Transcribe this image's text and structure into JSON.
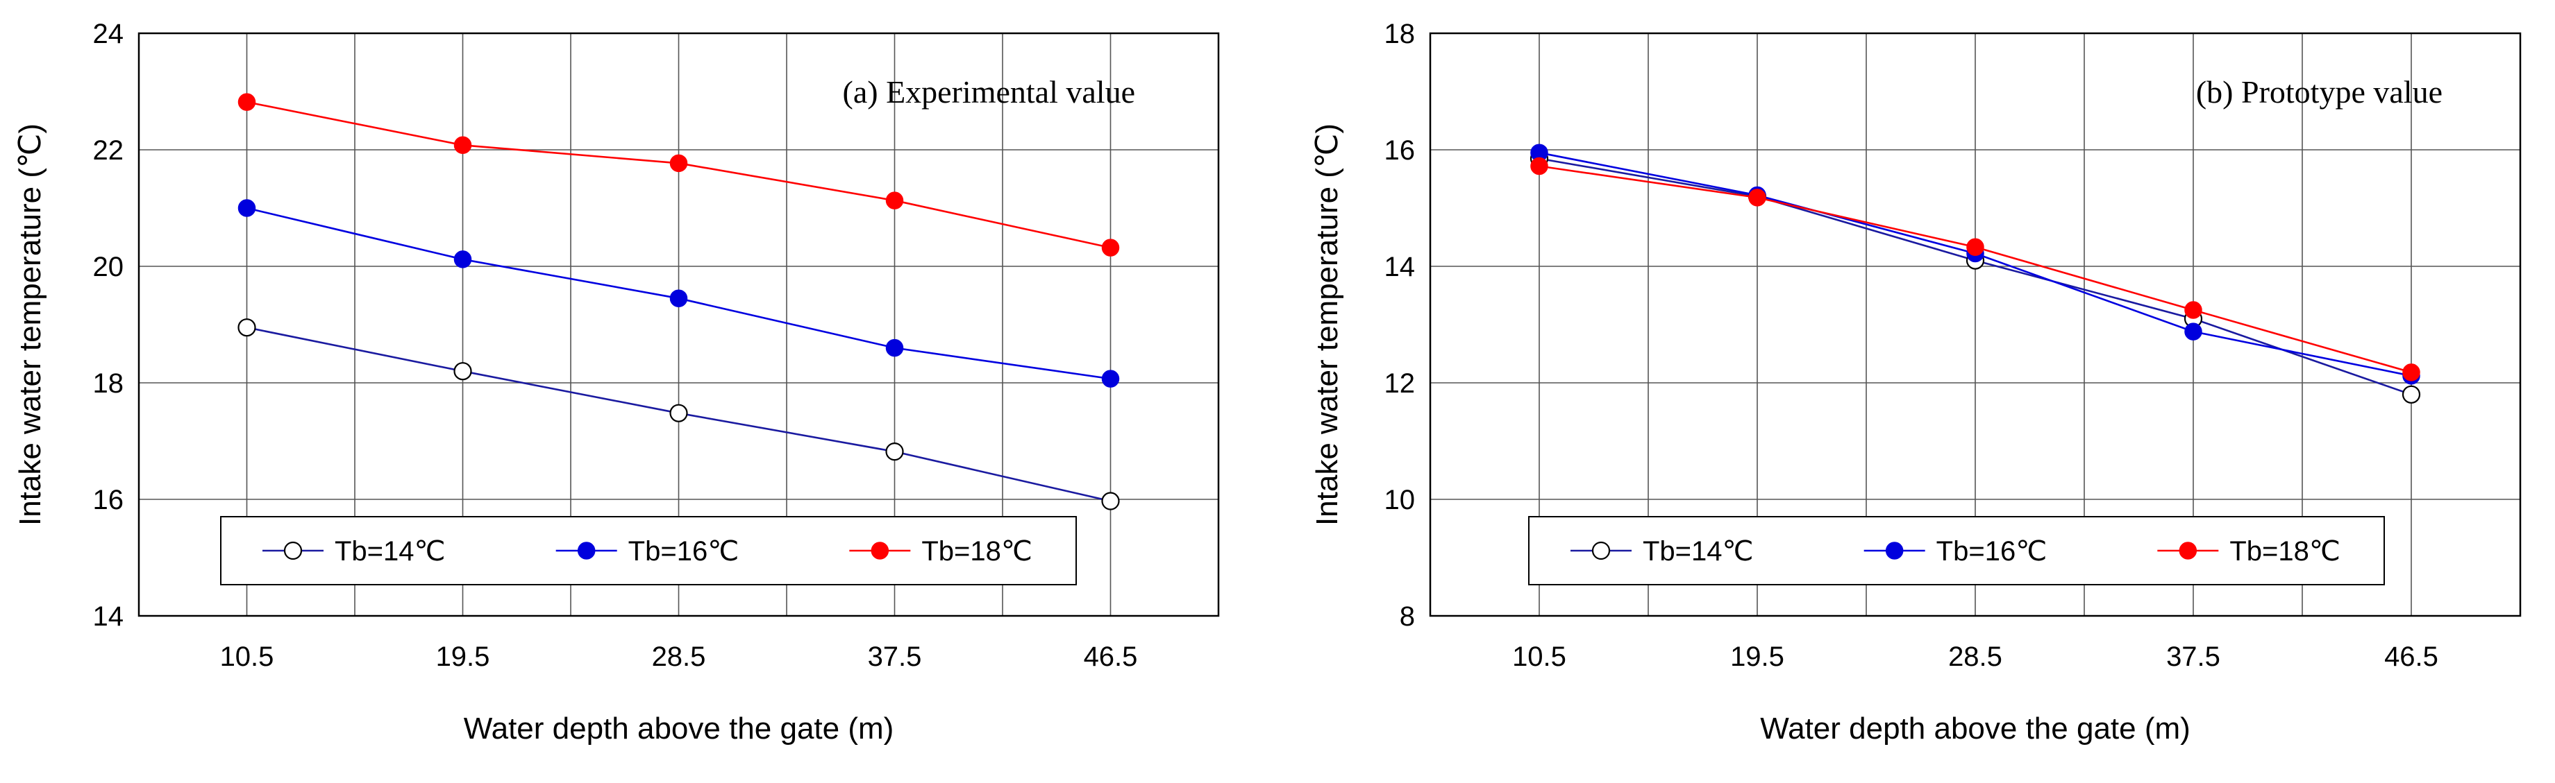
{
  "chart_data": [
    {
      "type": "line",
      "title": "(a) Experimental value",
      "xlabel": "Water depth above the gate (m)",
      "ylabel": "Intake water temperature (℃)",
      "categories": [
        "10.5",
        "19.5",
        "28.5",
        "37.5",
        "46.5"
      ],
      "ylim": [
        14,
        24
      ],
      "yticks": [
        "14",
        "16",
        "18",
        "20",
        "22",
        "24"
      ],
      "grid": true,
      "legend_position": "bottom",
      "series": [
        {
          "name": "Tb=14℃",
          "line_color": "#1a1aa0",
          "marker": "open-circle",
          "marker_fill": "#ffffff",
          "values": [
            18.95,
            18.2,
            17.48,
            16.82,
            15.97
          ]
        },
        {
          "name": "Tb=16℃",
          "line_color": "#0000e0",
          "marker": "filled-circle",
          "marker_fill": "#0000dd",
          "values": [
            21.0,
            20.12,
            19.45,
            18.6,
            18.07
          ]
        },
        {
          "name": "Tb=18℃",
          "line_color": "#ff0000",
          "marker": "filled-circle",
          "marker_fill": "#ff0000",
          "values": [
            22.82,
            22.08,
            21.77,
            21.13,
            20.32
          ]
        }
      ]
    },
    {
      "type": "line",
      "title": "(b) Prototype value",
      "xlabel": "Water depth above the gate (m)",
      "ylabel": "Intake water temperature (℃)",
      "categories": [
        "10.5",
        "19.5",
        "28.5",
        "37.5",
        "46.5"
      ],
      "ylim": [
        8,
        18
      ],
      "yticks": [
        "8",
        "10",
        "12",
        "14",
        "16",
        "18"
      ],
      "grid": true,
      "legend_position": "bottom",
      "series": [
        {
          "name": "Tb=14℃",
          "line_color": "#1a1aa0",
          "marker": "open-circle",
          "marker_fill": "#ffffff",
          "values": [
            15.85,
            15.2,
            14.1,
            13.1,
            11.8
          ]
        },
        {
          "name": "Tb=16℃",
          "line_color": "#0000e0",
          "marker": "filled-circle",
          "marker_fill": "#0000dd",
          "values": [
            15.95,
            15.22,
            14.22,
            12.88,
            12.12
          ]
        },
        {
          "name": "Tb=18℃",
          "line_color": "#ff0000",
          "marker": "filled-circle",
          "marker_fill": "#ff0000",
          "values": [
            15.72,
            15.18,
            14.33,
            13.25,
            12.18
          ]
        }
      ]
    }
  ]
}
